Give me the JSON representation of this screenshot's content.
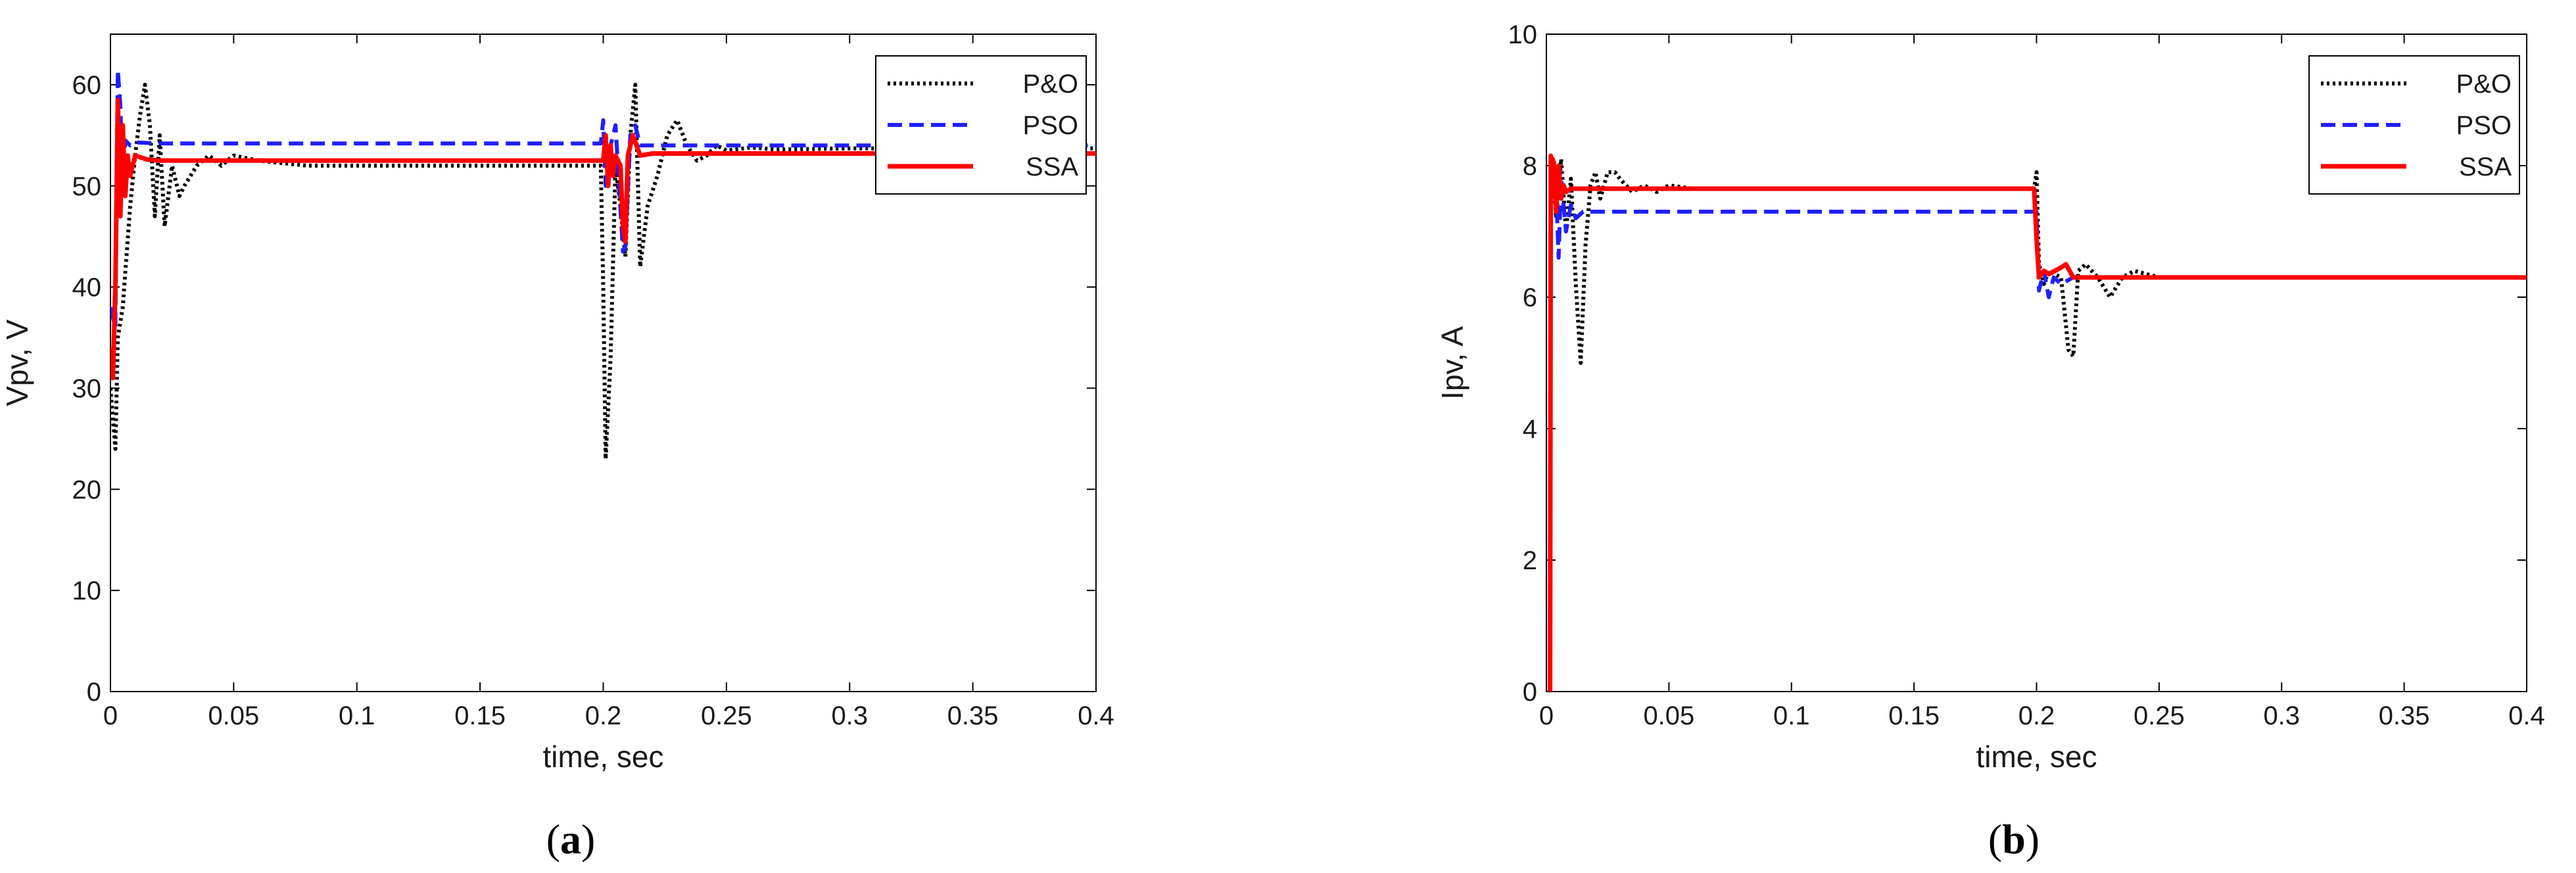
{
  "chart_data": [
    {
      "type": "line",
      "panel_label": "a",
      "xlabel": "time, sec",
      "ylabel": "Vpv, V",
      "xlim": [
        0,
        0.4
      ],
      "ylim": [
        0,
        65
      ],
      "xticks": [
        "0",
        "0.05",
        "0.1",
        "0.15",
        "0.2",
        "0.25",
        "0.3",
        "0.35",
        "0.4"
      ],
      "yticks": [
        "0",
        "10",
        "20",
        "30",
        "40",
        "50",
        "60"
      ],
      "grid": false,
      "legend_position": "top-right",
      "series": [
        {
          "name": "P&O",
          "color": "#000000",
          "style": "dotted",
          "x": [
            0,
            0.002,
            0.003,
            0.005,
            0.008,
            0.01,
            0.012,
            0.014,
            0.016,
            0.018,
            0.02,
            0.022,
            0.025,
            0.028,
            0.03,
            0.035,
            0.04,
            0.045,
            0.05,
            0.06,
            0.08,
            0.1,
            0.15,
            0.199,
            0.2,
            0.201,
            0.203,
            0.205,
            0.207,
            0.209,
            0.211,
            0.213,
            0.215,
            0.218,
            0.222,
            0.226,
            0.23,
            0.234,
            0.238,
            0.242,
            0.246,
            0.25,
            0.26,
            0.27,
            0.3,
            0.35,
            0.4
          ],
          "y": [
            30,
            24,
            35,
            38,
            48,
            53,
            57,
            60,
            56,
            47,
            55,
            46,
            52,
            49,
            50,
            52,
            53,
            52,
            53,
            52.5,
            52,
            52,
            52,
            52,
            40,
            23,
            33,
            52,
            48,
            43,
            55,
            60,
            42,
            48,
            51,
            55,
            56.5,
            54,
            52.5,
            53,
            54,
            53.5,
            53.8,
            53.6,
            53.7,
            53.7,
            53.7
          ]
        },
        {
          "name": "PSO",
          "color": "#1f1fff",
          "style": "dashed",
          "x": [
            0,
            0.002,
            0.003,
            0.004,
            0.005,
            0.006,
            0.008,
            0.01,
            0.02,
            0.05,
            0.1,
            0.15,
            0.199,
            0.2,
            0.201,
            0.203,
            0.205,
            0.208,
            0.209,
            0.211,
            0.213,
            0.215,
            0.22,
            0.25,
            0.3,
            0.35,
            0.4
          ],
          "y": [
            38,
            36,
            61.5,
            58,
            50,
            54.5,
            54,
            54.3,
            54.2,
            54.2,
            54.2,
            54.2,
            54.2,
            56.5,
            50,
            54,
            56,
            43.5,
            44,
            55,
            56,
            54,
            54,
            54,
            54,
            54,
            54
          ]
        },
        {
          "name": "SSA",
          "color": "#ff0000",
          "style": "solid",
          "x": [
            0,
            0.001,
            0.002,
            0.003,
            0.004,
            0.005,
            0.006,
            0.007,
            0.008,
            0.01,
            0.015,
            0.02,
            0.05,
            0.1,
            0.15,
            0.2,
            0.201,
            0.202,
            0.203,
            0.204,
            0.205,
            0.207,
            0.208,
            0.209,
            0.21,
            0.212,
            0.215,
            0.22,
            0.25,
            0.3,
            0.35,
            0.4
          ],
          "y": [
            34,
            31,
            40,
            58.5,
            47,
            56,
            49,
            53,
            51,
            53,
            52.6,
            52.5,
            52.5,
            52.5,
            52.5,
            52.5,
            55,
            50,
            54,
            51,
            53,
            52,
            46,
            44.5,
            53,
            55,
            53,
            53.2,
            53.2,
            53.2,
            53.2,
            53.2
          ]
        }
      ]
    },
    {
      "type": "line",
      "panel_label": "b",
      "xlabel": "time, sec",
      "ylabel": "Ipv, A",
      "xlim": [
        0,
        0.4
      ],
      "ylim": [
        0,
        10
      ],
      "xticks": [
        "0",
        "0.05",
        "0.1",
        "0.15",
        "0.2",
        "0.25",
        "0.3",
        "0.35",
        "0.4"
      ],
      "yticks": [
        "0",
        "2",
        "4",
        "6",
        "8",
        "10"
      ],
      "grid": false,
      "legend_position": "top-right",
      "series": [
        {
          "name": "P&O",
          "color": "#000000",
          "style": "dotted",
          "x": [
            0.0025,
            0.004,
            0.006,
            0.008,
            0.01,
            0.012,
            0.014,
            0.016,
            0.018,
            0.02,
            0.022,
            0.025,
            0.028,
            0.03,
            0.035,
            0.04,
            0.045,
            0.05,
            0.06,
            0.1,
            0.15,
            0.199,
            0.2,
            0.201,
            0.203,
            0.205,
            0.21,
            0.213,
            0.215,
            0.217,
            0.22,
            0.225,
            0.23,
            0.235,
            0.24,
            0.25,
            0.3,
            0.35,
            0.4
          ],
          "y": [
            8.0,
            7.2,
            8.1,
            7.0,
            7.8,
            6.2,
            5.0,
            6.8,
            7.7,
            7.9,
            7.5,
            7.9,
            7.9,
            7.8,
            7.6,
            7.7,
            7.6,
            7.7,
            7.65,
            7.65,
            7.65,
            7.65,
            7.9,
            6.5,
            6.2,
            6.4,
            6.3,
            5.2,
            5.1,
            6.4,
            6.5,
            6.3,
            6.0,
            6.3,
            6.4,
            6.3,
            6.3,
            6.3,
            6.3
          ]
        },
        {
          "name": "PSO",
          "color": "#1f1fff",
          "style": "dashed",
          "x": [
            0.0025,
            0.004,
            0.005,
            0.006,
            0.008,
            0.01,
            0.012,
            0.015,
            0.02,
            0.05,
            0.1,
            0.15,
            0.2,
            0.201,
            0.203,
            0.205,
            0.207,
            0.21,
            0.215,
            0.22,
            0.25,
            0.3,
            0.35,
            0.4
          ],
          "y": [
            8.0,
            7.6,
            6.6,
            7.8,
            7.0,
            7.4,
            7.2,
            7.3,
            7.3,
            7.3,
            7.3,
            7.3,
            7.3,
            6.1,
            6.4,
            6.0,
            6.3,
            6.2,
            6.3,
            6.3,
            6.3,
            6.3,
            6.3,
            6.3
          ]
        },
        {
          "name": "SSA",
          "color": "#ff0000",
          "style": "solid",
          "x": [
            0.0015,
            0.0018,
            0.002,
            0.0025,
            0.003,
            0.004,
            0.005,
            0.006,
            0.007,
            0.008,
            0.01,
            0.015,
            0.02,
            0.05,
            0.1,
            0.15,
            0.199,
            0.2,
            0.201,
            0.203,
            0.205,
            0.21,
            0.212,
            0.215,
            0.22,
            0.25,
            0.3,
            0.35,
            0.4
          ],
          "y": [
            0,
            8.15,
            8.1,
            8.1,
            8.05,
            7.3,
            8.0,
            7.5,
            7.7,
            7.6,
            7.65,
            7.65,
            7.65,
            7.65,
            7.65,
            7.65,
            7.65,
            6.9,
            6.3,
            6.4,
            6.35,
            6.45,
            6.5,
            6.3,
            6.3,
            6.3,
            6.3,
            6.3,
            6.3
          ]
        }
      ]
    }
  ]
}
